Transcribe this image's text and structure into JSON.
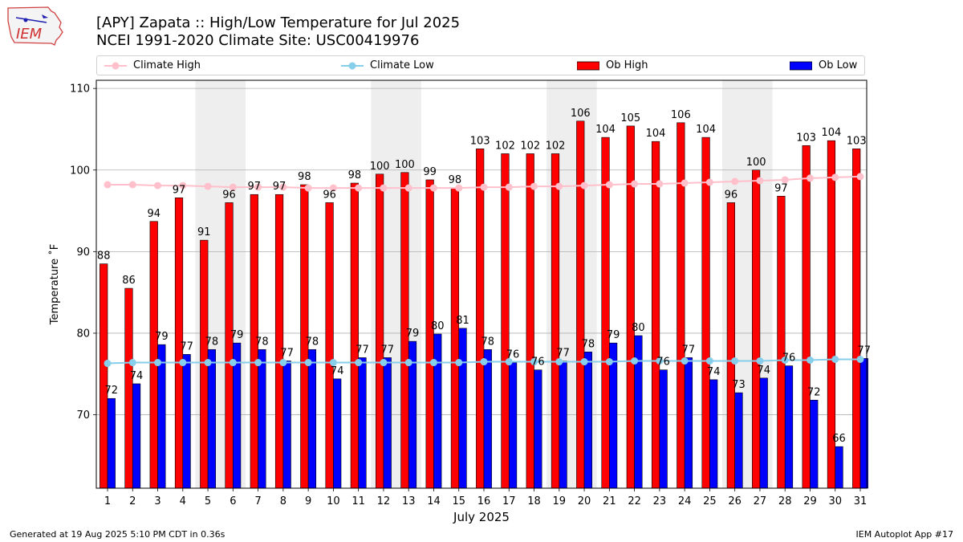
{
  "header": {
    "title": "[APY] Zapata :: High/Low Temperature for Jul 2025",
    "subtitle": "NCEI 1991-2020 Climate Site: USC00419976",
    "logo_text": "IEM"
  },
  "footer": {
    "generated": "Generated at 19 Aug 2025 5:10 PM CDT in 0.36s",
    "app": "IEM Autoplot App #17"
  },
  "colors": {
    "ob_high": "#ff0000",
    "ob_low": "#0000ff",
    "climate_high": "#ffc0cb",
    "climate_low": "#87ceeb",
    "weekend_band": "#eeeeee",
    "grid": "#b0b0b0"
  },
  "chart_data": {
    "type": "bar",
    "xlabel": "July 2025",
    "ylabel": "Temperature ˚F",
    "ylim": [
      61,
      111
    ],
    "yticks": [
      70,
      80,
      90,
      100,
      110
    ],
    "grid": "horizontal",
    "legend_position": "top",
    "categories": [
      "1",
      "2",
      "3",
      "4",
      "5",
      "6",
      "7",
      "8",
      "9",
      "10",
      "11",
      "12",
      "13",
      "14",
      "15",
      "16",
      "17",
      "18",
      "19",
      "20",
      "21",
      "22",
      "23",
      "24",
      "25",
      "26",
      "27",
      "28",
      "29",
      "30",
      "31"
    ],
    "weekend_bands": [
      [
        5,
        6
      ],
      [
        12,
        13
      ],
      [
        19,
        20
      ],
      [
        26,
        27
      ]
    ],
    "series": [
      {
        "name": "Ob High",
        "kind": "bar",
        "values": [
          88.5,
          85.5,
          93.7,
          96.6,
          91.4,
          96,
          97,
          97,
          98.2,
          96,
          98.4,
          99.5,
          99.7,
          98.8,
          97.8,
          102.6,
          102,
          102,
          102,
          106,
          104,
          105.4,
          103.5,
          105.8,
          104,
          96,
          100,
          96.8,
          103,
          103.6,
          102.6
        ],
        "labels": [
          "88",
          "86",
          "94",
          "97",
          "91",
          "96",
          "97",
          "97",
          "98",
          "96",
          "98",
          "100",
          "100",
          "99",
          "98",
          "103",
          "102",
          "102",
          "102",
          "106",
          "104",
          "105",
          "104",
          "106",
          "104",
          "96",
          "100",
          "97",
          "103",
          "104",
          "103"
        ]
      },
      {
        "name": "Ob Low",
        "kind": "bar",
        "values": [
          72,
          73.8,
          78.6,
          77.4,
          78,
          78.8,
          78,
          76.6,
          78,
          74.4,
          77,
          77,
          79,
          79.9,
          80.6,
          78,
          76.4,
          75.5,
          76.6,
          77.7,
          78.8,
          79.7,
          75.5,
          77,
          74.3,
          72.7,
          74.5,
          76,
          71.8,
          66.1,
          76.9
        ],
        "labels": [
          "72",
          "74",
          "79",
          "77",
          "78",
          "79",
          "78",
          "77",
          "78",
          "74",
          "77",
          "77",
          "79",
          "80",
          "81",
          "78",
          "76",
          "76",
          "77",
          "78",
          "79",
          "80",
          "76",
          "77",
          "74",
          "73",
          "74",
          "76",
          "72",
          "66",
          "77"
        ]
      },
      {
        "name": "Climate High",
        "kind": "line",
        "values": [
          98.2,
          98.2,
          98.1,
          98.1,
          98,
          97.9,
          97.9,
          97.9,
          97.8,
          97.8,
          97.8,
          97.8,
          97.8,
          97.8,
          97.8,
          97.9,
          97.9,
          98,
          98,
          98.1,
          98.2,
          98.3,
          98.3,
          98.4,
          98.5,
          98.6,
          98.7,
          98.8,
          99,
          99.1,
          99.2
        ]
      },
      {
        "name": "Climate Low",
        "kind": "line",
        "values": [
          76.3,
          76.4,
          76.4,
          76.4,
          76.4,
          76.4,
          76.4,
          76.4,
          76.4,
          76.4,
          76.4,
          76.4,
          76.4,
          76.4,
          76.4,
          76.5,
          76.5,
          76.5,
          76.5,
          76.5,
          76.5,
          76.6,
          76.6,
          76.6,
          76.6,
          76.6,
          76.6,
          76.7,
          76.7,
          76.8,
          76.8
        ]
      }
    ]
  }
}
